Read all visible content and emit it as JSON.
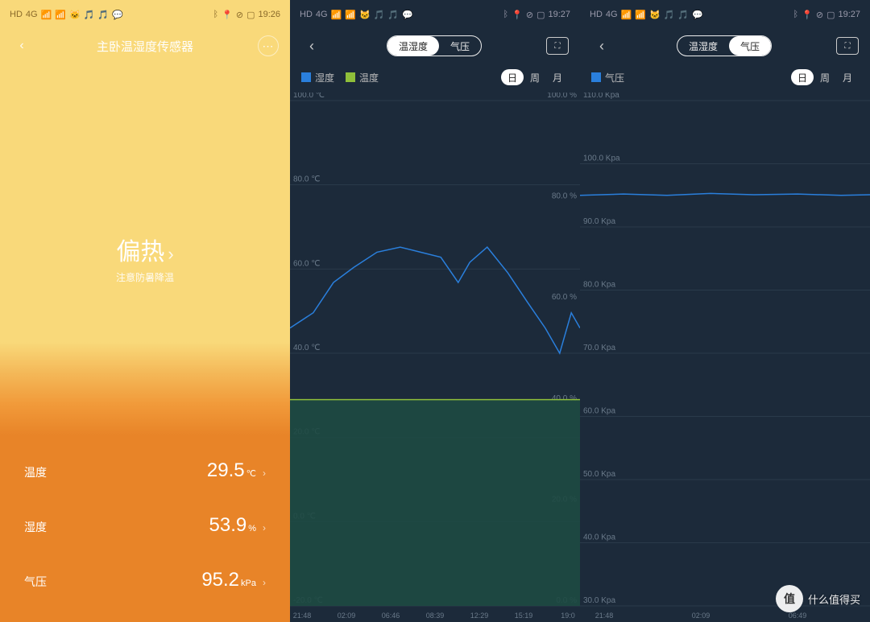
{
  "status": {
    "left_icons": [
      "HD",
      "4G",
      "📶",
      "📶",
      "🐱",
      "🎵",
      "🎵",
      "💬"
    ],
    "right_icons": [
      "ᛒ",
      "📍",
      "⊘",
      "79"
    ],
    "time1": "19:26",
    "time2": "19:27",
    "time3": "19:27"
  },
  "panel1": {
    "title": "主卧温湿度传感器",
    "hero_main": "偏热",
    "hero_sub": "注意防暑降温",
    "rows": [
      {
        "label": "温度",
        "value": "29.5",
        "unit": "℃"
      },
      {
        "label": "湿度",
        "value": "53.9",
        "unit": "%"
      },
      {
        "label": "气压",
        "value": "95.2",
        "unit": "kPa"
      }
    ],
    "colors": {
      "top": "#f9d97a",
      "mid": "#f4b858",
      "bottom": "#e88428",
      "text": "#ffffff"
    }
  },
  "panel2": {
    "tabs": [
      "温湿度",
      "气压"
    ],
    "active_tab": 0,
    "legend": [
      {
        "label": "湿度",
        "color": "#2a7fdc"
      },
      {
        "label": "温度",
        "color": "#8fbf3a"
      }
    ],
    "periods": [
      "日",
      "周",
      "月"
    ],
    "active_period": 0,
    "chart": {
      "type": "line-dual-axis",
      "background": "#1c2a3a",
      "grid_color": "#2a3a4a",
      "area_fill": "#1e4a42",
      "y_left": {
        "label_suffix": "℃",
        "min": -20,
        "max": 100,
        "step": 20,
        "ticks": [
          "-20.0 ℃",
          "0.0 ℃",
          "20.0 ℃",
          "40.0 ℃",
          "60.0 ℃",
          "80.0 ℃",
          "100.0 ℃"
        ]
      },
      "y_right": {
        "label_suffix": "%",
        "min": 0,
        "max": 100,
        "step": 20,
        "ticks": [
          "0.0 %",
          "20.0 %",
          "40.0 %",
          "60.0 %",
          "80.0 %",
          "100.0 %"
        ]
      },
      "x_labels": [
        "21:48",
        "02:09",
        "06:46",
        "08:39",
        "12:29",
        "15:19",
        "19:0"
      ],
      "temp_series": {
        "color": "#8fbf3a",
        "points": [
          [
            0,
            29
          ],
          [
            0.15,
            29
          ],
          [
            0.3,
            29
          ],
          [
            0.45,
            29
          ],
          [
            0.6,
            29
          ],
          [
            0.75,
            29
          ],
          [
            0.9,
            29
          ],
          [
            1.0,
            29
          ]
        ]
      },
      "humidity_series": {
        "color": "#2a7fdc",
        "points": [
          [
            0,
            55
          ],
          [
            0.08,
            58
          ],
          [
            0.15,
            64
          ],
          [
            0.22,
            67
          ],
          [
            0.3,
            70
          ],
          [
            0.38,
            71
          ],
          [
            0.45,
            70
          ],
          [
            0.52,
            69
          ],
          [
            0.58,
            64
          ],
          [
            0.62,
            68
          ],
          [
            0.68,
            71
          ],
          [
            0.75,
            66
          ],
          [
            0.82,
            60
          ],
          [
            0.88,
            55
          ],
          [
            0.93,
            50
          ],
          [
            0.97,
            58
          ],
          [
            1.0,
            55
          ]
        ]
      }
    }
  },
  "panel3": {
    "tabs": [
      "温湿度",
      "气压"
    ],
    "active_tab": 1,
    "legend": [
      {
        "label": "气压",
        "color": "#2a7fdc"
      }
    ],
    "periods": [
      "日",
      "周",
      "月"
    ],
    "active_period": 0,
    "chart": {
      "type": "line",
      "background": "#1c2a3a",
      "grid_color": "#2a3a4a",
      "y": {
        "label_suffix": "Kpa",
        "min": 30,
        "max": 110,
        "step": 10,
        "ticks": [
          "30.0 Kpa",
          "40.0 Kpa",
          "50.0 Kpa",
          "60.0 Kpa",
          "70.0 Kpa",
          "80.0 Kpa",
          "90.0 Kpa",
          "100.0 Kpa",
          "110.0 Kpa"
        ]
      },
      "x_labels": [
        "21:48",
        "02:09",
        "06:49"
      ],
      "pressure_series": {
        "color": "#2a7fdc",
        "points": [
          [
            0,
            95
          ],
          [
            0.15,
            95.2
          ],
          [
            0.3,
            95
          ],
          [
            0.45,
            95.3
          ],
          [
            0.6,
            95.1
          ],
          [
            0.75,
            95.2
          ],
          [
            0.9,
            95
          ],
          [
            1.0,
            95.1
          ]
        ]
      }
    }
  },
  "watermark": {
    "badge": "值",
    "text": "什么值得买"
  }
}
